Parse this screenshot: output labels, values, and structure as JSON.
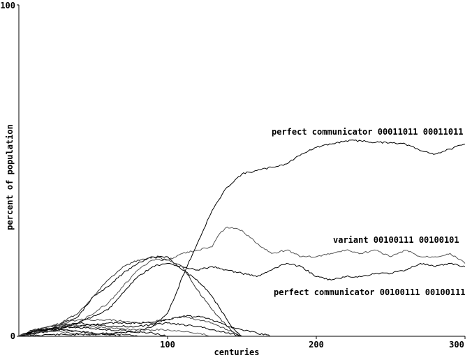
{
  "chart_data": {
    "type": "line",
    "title": "",
    "xlabel": "centuries",
    "ylabel": "percent of population",
    "xlim": [
      0,
      300
    ],
    "ylim": [
      0,
      100
    ],
    "x_ticks": [
      100,
      200,
      300
    ],
    "y_ticks": [
      0,
      100
    ],
    "grid": false,
    "annotations": [
      {
        "text": "perfect communicator 00011011 00011011"
      },
      {
        "text": "variant 00100111 00100101"
      },
      {
        "text": "perfect communicator 00100111 00100111"
      }
    ],
    "series": [
      {
        "color": "#000000",
        "x": [
          0,
          20,
          40,
          60,
          80,
          90,
          100,
          105,
          110,
          120,
          130,
          140,
          150,
          160,
          170,
          180,
          190,
          200,
          210,
          220,
          230,
          240,
          250,
          260,
          270,
          280,
          290,
          300
        ],
        "y": [
          0,
          0.5,
          0.5,
          0.8,
          1.5,
          3,
          7,
          12,
          18,
          28,
          38,
          45,
          49,
          50,
          51,
          52,
          55,
          57,
          58,
          59,
          59,
          58.5,
          58.5,
          58,
          56,
          55,
          56.5,
          58
        ]
      },
      {
        "color": "#555555",
        "x": [
          0,
          20,
          40,
          60,
          70,
          80,
          90,
          100,
          110,
          120,
          130,
          135,
          140,
          150,
          160,
          170,
          180,
          190,
          200,
          210,
          220,
          230,
          240,
          250,
          260,
          270,
          280,
          290,
          300
        ],
        "y": [
          0,
          2,
          4,
          10,
          15,
          20,
          23,
          23,
          25,
          26,
          27,
          31,
          33,
          32,
          28,
          25,
          26,
          24,
          24,
          25,
          26,
          25,
          26,
          24,
          26,
          24,
          24,
          25,
          22
        ]
      },
      {
        "color": "#000000",
        "x": [
          0,
          20,
          40,
          60,
          80,
          90,
          100,
          110,
          120,
          130,
          140,
          150,
          160,
          170,
          180,
          190,
          200,
          210,
          220,
          230,
          240,
          250,
          260,
          270,
          280,
          290,
          300
        ],
        "y": [
          0,
          1.5,
          4,
          8,
          18,
          21,
          22,
          21,
          20,
          21,
          20,
          19,
          18,
          20,
          22,
          21,
          18,
          17,
          18,
          18,
          19,
          19,
          20,
          22,
          21,
          22,
          21
        ]
      },
      {
        "color": "#000000",
        "x": [
          0,
          20,
          40,
          50,
          60,
          70,
          80,
          90,
          100,
          110,
          120,
          130,
          140,
          145,
          150
        ],
        "y": [
          0,
          2,
          6,
          12,
          15,
          19,
          22,
          24,
          24,
          20,
          17,
          12,
          5,
          2,
          0
        ]
      },
      {
        "color": "#333333",
        "x": [
          0,
          20,
          40,
          50,
          60,
          70,
          80,
          90,
          100,
          110,
          120,
          130,
          140,
          145,
          150
        ],
        "y": [
          0,
          2,
          7,
          12,
          17,
          21,
          23,
          24,
          23,
          21,
          14,
          8,
          3,
          1,
          0
        ]
      },
      {
        "color": "#000000",
        "x": [
          0,
          20,
          40,
          60,
          80,
          90,
          100,
          110,
          120,
          130,
          140,
          150,
          160,
          170
        ],
        "y": [
          0,
          2,
          3,
          4,
          4,
          4,
          5,
          6,
          6,
          5,
          3,
          2,
          1,
          0
        ]
      },
      {
        "color": "#444444",
        "x": [
          0,
          20,
          40,
          60,
          80,
          100,
          110,
          120,
          130,
          140,
          150
        ],
        "y": [
          0,
          3,
          5,
          5,
          4,
          5,
          6,
          5,
          4,
          2,
          0
        ]
      },
      {
        "color": "#000000",
        "x": [
          0,
          20,
          40,
          60,
          80,
          100,
          120,
          140,
          150
        ],
        "y": [
          0,
          3,
          4,
          3,
          3,
          4,
          3,
          1,
          0
        ]
      },
      {
        "color": "#555555",
        "x": [
          0,
          15,
          30,
          45,
          60,
          80,
          100,
          120,
          130
        ],
        "y": [
          0,
          2.5,
          3.5,
          3,
          2.5,
          2,
          2,
          1,
          0
        ]
      },
      {
        "color": "#000000",
        "x": [
          0,
          15,
          30,
          45,
          60,
          75,
          90,
          100
        ],
        "y": [
          0,
          2,
          3,
          2.5,
          2,
          1.5,
          1,
          0
        ]
      },
      {
        "color": "#333333",
        "x": [
          0,
          10,
          20,
          30,
          40,
          50,
          60,
          70,
          80
        ],
        "y": [
          0,
          2,
          2.5,
          2,
          1.5,
          1,
          0.8,
          0.5,
          0
        ]
      },
      {
        "color": "#000000",
        "x": [
          0,
          10,
          20,
          30,
          40,
          50,
          60,
          70
        ],
        "y": [
          0,
          1.5,
          2,
          1.8,
          1.5,
          1,
          0.5,
          0
        ]
      },
      {
        "color": "#444444",
        "x": [
          0,
          10,
          20,
          30,
          40,
          50,
          60
        ],
        "y": [
          0,
          1,
          1.5,
          1.2,
          0.8,
          0.4,
          0
        ]
      }
    ]
  }
}
